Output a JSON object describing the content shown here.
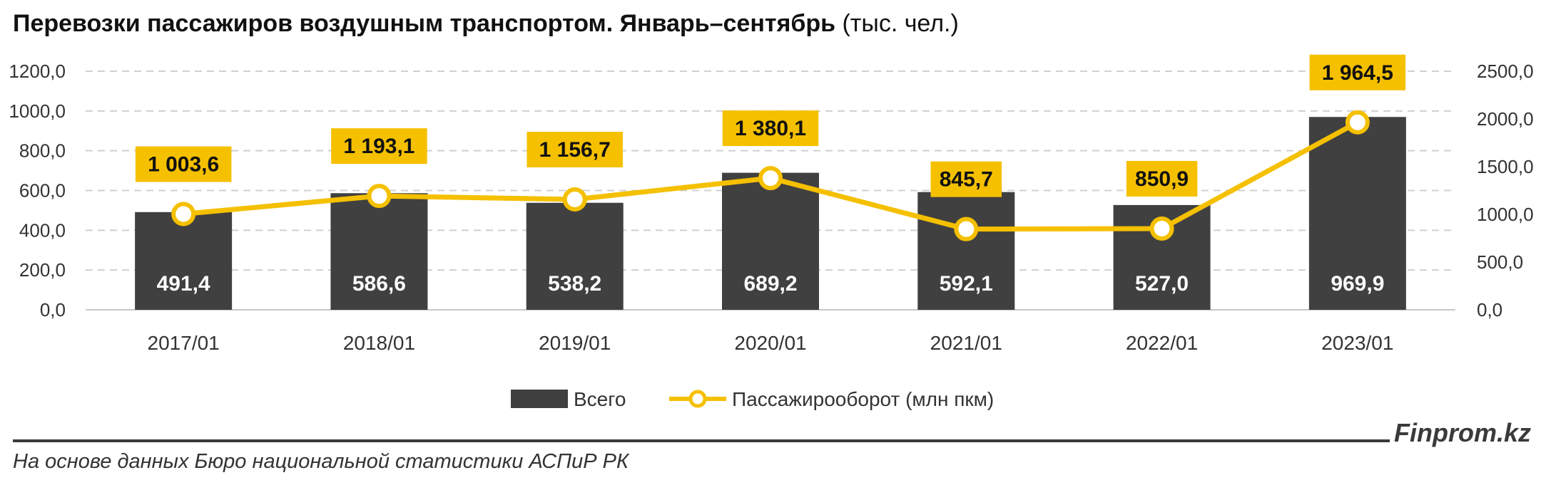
{
  "title": {
    "main": "Перевозки пассажиров воздушным транспортом. Январь–сентябрь",
    "unit": "(тыс. чел.)"
  },
  "chart_data": {
    "type": "bar",
    "categories": [
      "2017/01",
      "2018/01",
      "2019/01",
      "2020/01",
      "2021/01",
      "2022/01",
      "2023/01"
    ],
    "series": [
      {
        "name": "Всего",
        "type": "bar",
        "axis": "left",
        "color": "#404040",
        "values": [
          491.4,
          586.6,
          538.2,
          689.2,
          592.1,
          527.0,
          969.9
        ],
        "labels": [
          "491,4",
          "586,6",
          "538,2",
          "689,2",
          "592,1",
          "527,0",
          "969,9"
        ]
      },
      {
        "name": "Пассажирооборот (млн пкм)",
        "type": "line",
        "axis": "right",
        "color": "#f5c000",
        "values": [
          1003.6,
          1193.1,
          1156.7,
          1380.1,
          845.7,
          850.9,
          1964.5
        ],
        "labels": [
          "1 003,6",
          "1 193,1",
          "1 156,7",
          "1 380,1",
          "845,7",
          "850,9",
          "1 964,5"
        ]
      }
    ],
    "y_left": {
      "min": 0,
      "max": 1200,
      "ticks": [
        "0,0",
        "200,0",
        "400,0",
        "600,0",
        "800,0",
        "1000,0",
        "1200,0"
      ]
    },
    "y_right": {
      "min": 0,
      "max": 2500,
      "ticks": [
        "0,0",
        "500,0",
        "1000,0",
        "1500,0",
        "2000,0",
        "2500,0"
      ]
    },
    "grid": true,
    "legend": "bottom"
  },
  "footer": {
    "source": "На основе данных Бюро национальной статистики АСПиР РК",
    "brand": "Finprom.kz"
  }
}
